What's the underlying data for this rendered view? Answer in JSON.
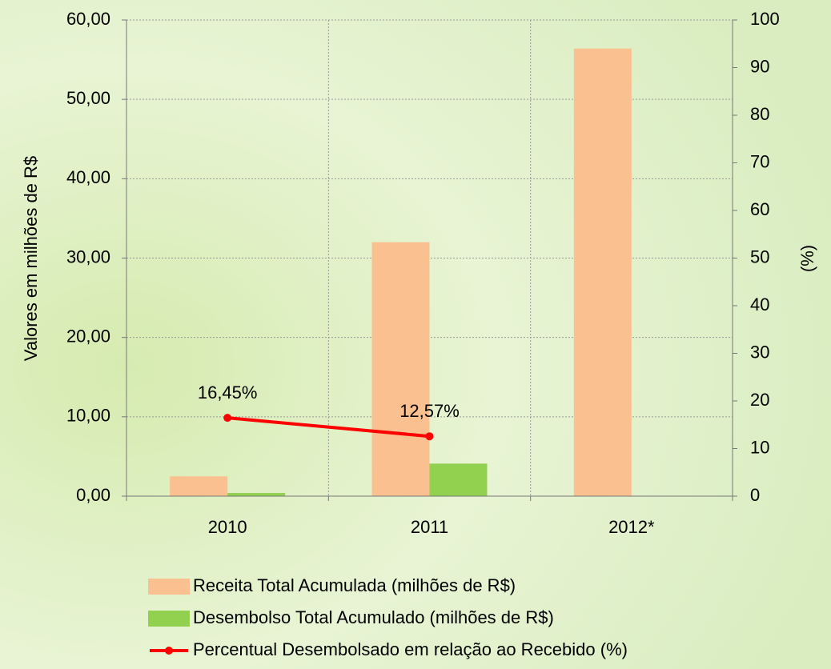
{
  "chart_data": {
    "type": "bar",
    "categories": [
      "2010",
      "2011",
      "2012*"
    ],
    "series": [
      {
        "name": "Receita Total Acumulada (milhões de R$)",
        "color": "#fac090",
        "values": [
          2.5,
          32.0,
          56.4
        ]
      },
      {
        "name": "Desembolso Total Acumulado (milhões de R$)",
        "color": "#92d050",
        "values": [
          0.4,
          4.1,
          null
        ]
      },
      {
        "name": "Percentual Desembolsado em relação ao Recebido (%)",
        "color": "#ff0000",
        "type": "line",
        "axis": "y2",
        "values": [
          16.45,
          12.57,
          null
        ],
        "value_labels": [
          "16,45%",
          "12,57%",
          null
        ]
      }
    ],
    "ylabel": "Valores em milhões de R$",
    "y2label": "(%)",
    "ylim": [
      0,
      60
    ],
    "yticks": [
      {
        "value": 0,
        "label": "0,00"
      },
      {
        "value": 10,
        "label": "10,00"
      },
      {
        "value": 20,
        "label": "20,00"
      },
      {
        "value": 30,
        "label": "30,00"
      },
      {
        "value": 40,
        "label": "40,00"
      },
      {
        "value": 50,
        "label": "50,00"
      },
      {
        "value": 60,
        "label": "60,00"
      }
    ],
    "y2lim": [
      0,
      100
    ],
    "y2ticks": [
      0,
      10,
      20,
      30,
      40,
      50,
      60,
      70,
      80,
      90,
      100
    ],
    "grid": true,
    "legend": "bottom"
  }
}
